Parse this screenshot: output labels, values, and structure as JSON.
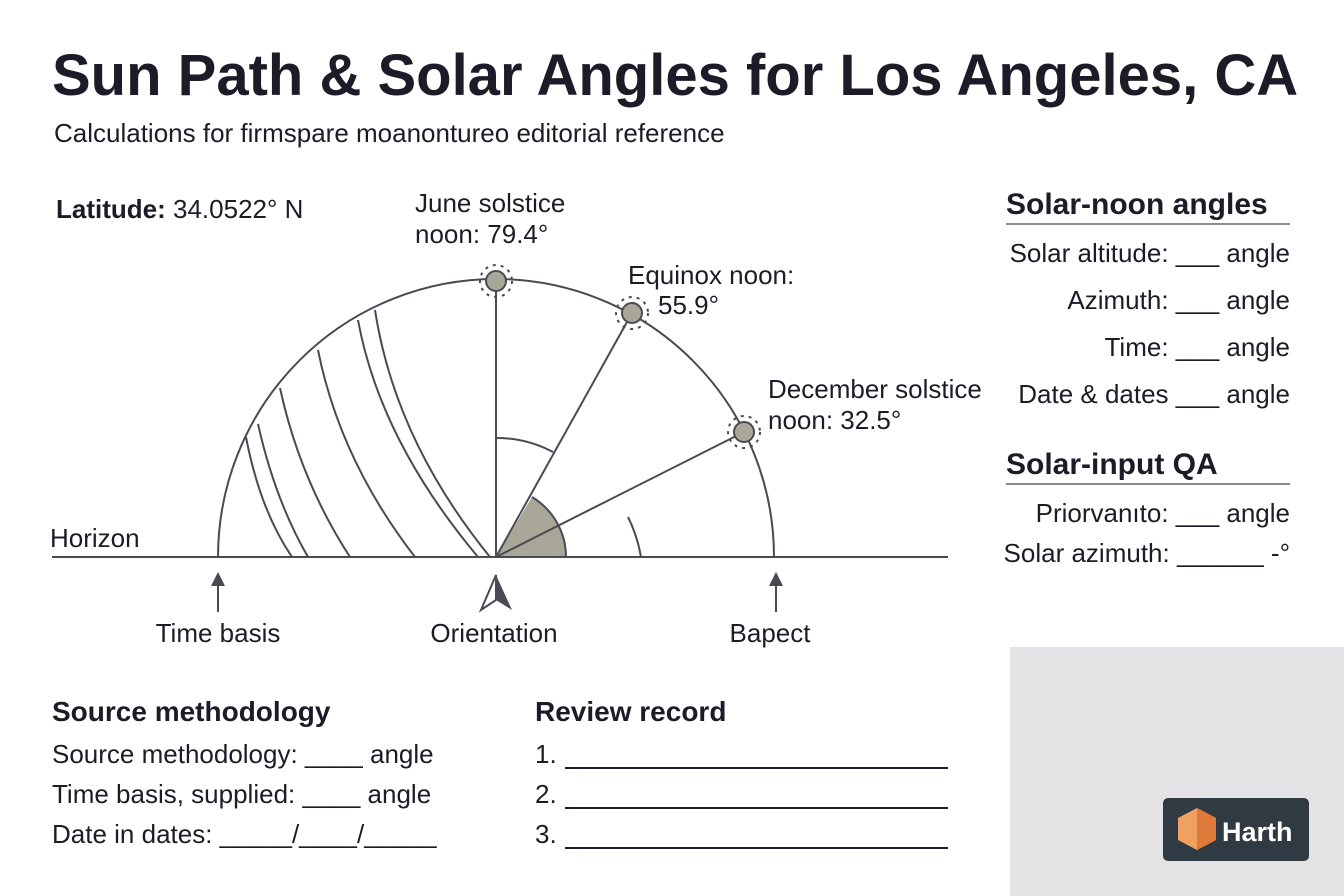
{
  "header": {
    "title": "Sun Path & Solar Angles for Los Angeles, CA",
    "subtitle": "Calculations for firmspare moanontureo editorial reference"
  },
  "latitude": {
    "label": "Latitude:",
    "value": "34.0522° N"
  },
  "diagram": {
    "sun_labels": [
      {
        "lines": [
          "June solstice",
          "noon: 79.4°"
        ]
      },
      {
        "lines": [
          "Equinox noon:",
          "55.9°"
        ]
      },
      {
        "lines": [
          "December solstice",
          "noon: 32.5°"
        ]
      }
    ],
    "horizon": "Horizon",
    "markers": [
      "Time basis",
      "Orientation",
      "Bapect"
    ]
  },
  "solar_noon": {
    "title": "Solar-noon angles",
    "rows": [
      "Solar altitude: ___ angle",
      "Azimuth: ___ angle",
      "Time: ___ angle",
      "Date & dates ___ angle"
    ]
  },
  "solar_input": {
    "title": "Solar-input QA",
    "rows": [
      "Priorvanıto: ___ angle",
      "Solar azimuth: ______ -°"
    ]
  },
  "source": {
    "title": "Source methodology",
    "rows": [
      "Source methodology: ____ angle",
      "Time basis, supplied: ____ angle",
      "Date in dates: _____/____/_____"
    ]
  },
  "review": {
    "title": "Review record",
    "rows": [
      "1.",
      "2.",
      "3."
    ]
  },
  "logo": {
    "text": "Harth"
  }
}
